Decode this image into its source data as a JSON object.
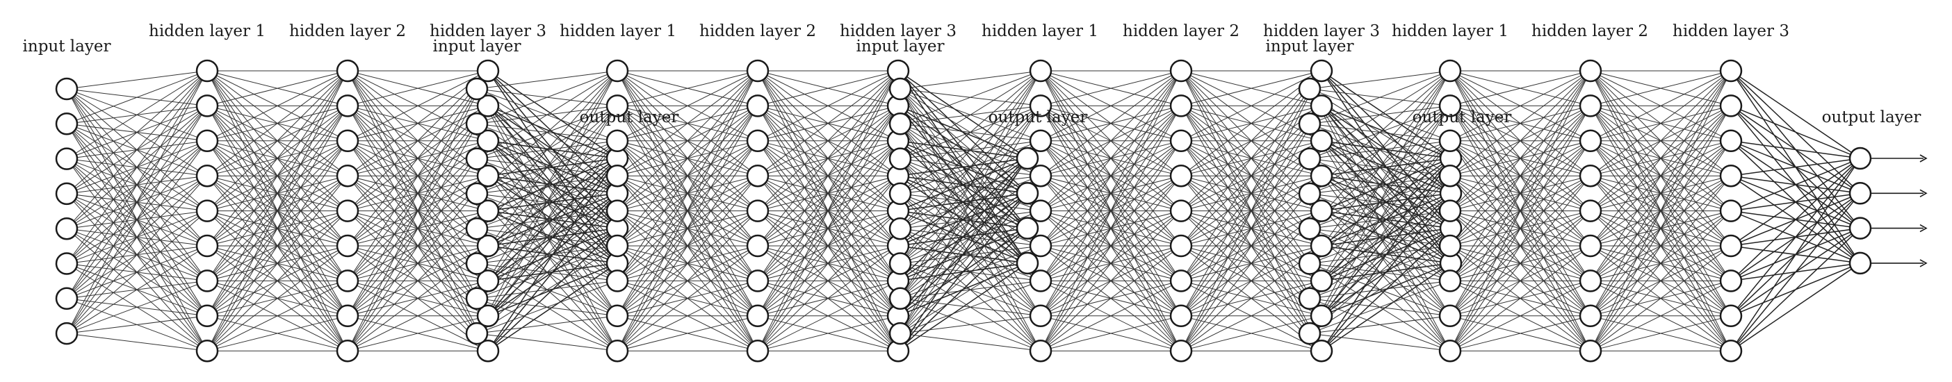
{
  "diagram": {
    "labels": [
      {
        "id": "n1-input",
        "text": "input layer"
      },
      {
        "id": "n1-hidden1",
        "text": "hidden layer 1"
      },
      {
        "id": "n1-hidden2",
        "text": "hidden layer 2"
      },
      {
        "id": "n1-hidden3",
        "text": "hidden layer 3"
      },
      {
        "id": "n1-output",
        "text": "output layer"
      },
      {
        "id": "n2-input",
        "text": "input layer"
      },
      {
        "id": "n2-hidden1",
        "text": "hidden layer 1"
      },
      {
        "id": "n2-hidden2",
        "text": "hidden layer 2"
      },
      {
        "id": "n2-hidden3",
        "text": "hidden layer 3"
      },
      {
        "id": "n2-output",
        "text": "output layer"
      },
      {
        "id": "n3-input",
        "text": "input layer"
      },
      {
        "id": "n3-hidden1",
        "text": "hidden layer 1"
      },
      {
        "id": "n3-hidden2",
        "text": "hidden layer 2"
      },
      {
        "id": "n3-hidden3",
        "text": "hidden layer 3"
      },
      {
        "id": "n3-output",
        "text": "output layer"
      },
      {
        "id": "n4-input",
        "text": "input layer"
      },
      {
        "id": "n4-hidden1",
        "text": "hidden layer 1"
      },
      {
        "id": "n4-hidden2",
        "text": "hidden layer 2"
      },
      {
        "id": "n4-hidden3",
        "text": "hidden layer 3"
      },
      {
        "id": "n4-output",
        "text": "output layer"
      }
    ],
    "output_arrows": 4
  }
}
